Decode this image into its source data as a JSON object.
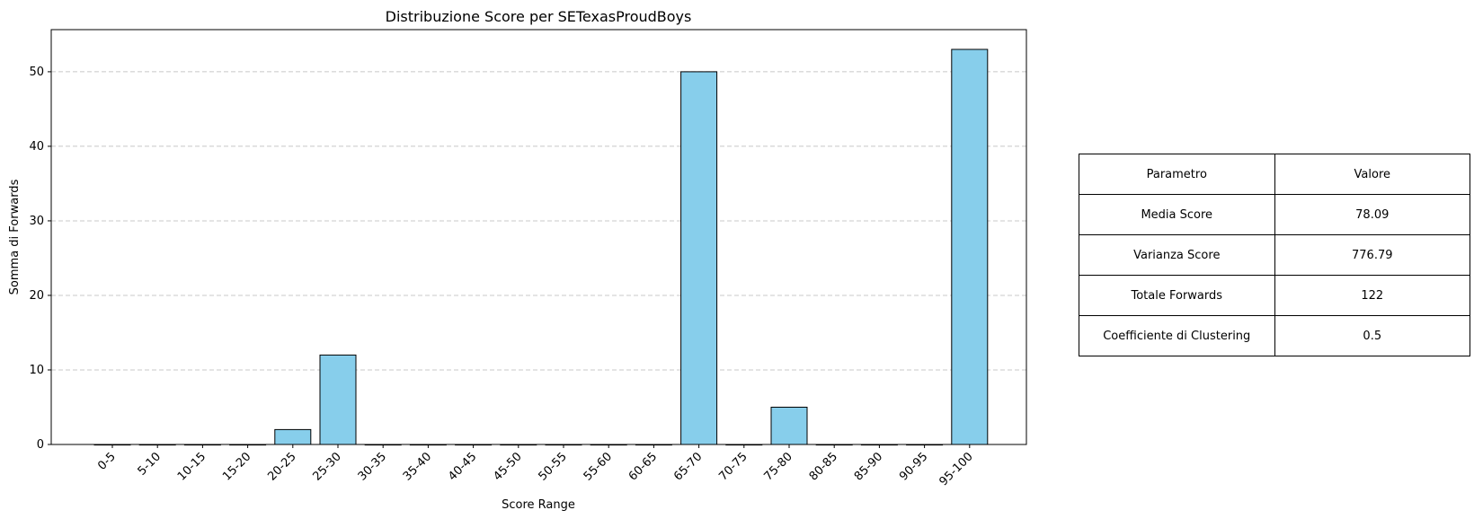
{
  "chart_data": {
    "type": "bar",
    "title": "Distribuzione Score per SETexasProudBoys",
    "xlabel": "Score Range",
    "ylabel": "Somma di Forwards",
    "categories": [
      "0-5",
      "5-10",
      "10-15",
      "15-20",
      "20-25",
      "25-30",
      "30-35",
      "35-40",
      "40-45",
      "45-50",
      "50-55",
      "55-60",
      "60-65",
      "65-70",
      "70-75",
      "75-80",
      "80-85",
      "85-90",
      "90-95",
      "95-100"
    ],
    "values": [
      0,
      0,
      0,
      0,
      2,
      12,
      0,
      0,
      0,
      0,
      0,
      0,
      0,
      50,
      0,
      5,
      0,
      0,
      0,
      53
    ],
    "ylim": [
      0,
      55.65
    ],
    "yticks": [
      0,
      10,
      20,
      30,
      40,
      50
    ],
    "grid": "y-dashed",
    "bar_color": "#87ceeb",
    "edge_color": "#000000"
  },
  "table": {
    "header": {
      "param": "Parametro",
      "value": "Valore"
    },
    "rows": [
      {
        "param": "Media Score",
        "value": "78.09"
      },
      {
        "param": "Varianza Score",
        "value": "776.79"
      },
      {
        "param": "Totale Forwards",
        "value": "122"
      },
      {
        "param": "Coefficiente di Clustering",
        "value": "0.5"
      }
    ]
  }
}
